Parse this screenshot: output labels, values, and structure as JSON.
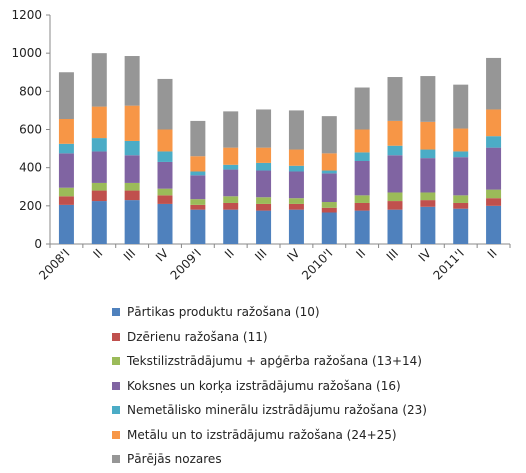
{
  "chart_data": {
    "type": "bar",
    "stacked": true,
    "categories": [
      "2008'I",
      "II",
      "III",
      "IV",
      "2009'I",
      "II",
      "III",
      "IV",
      "2010'I",
      "II",
      "III",
      "IV",
      "2011'I",
      "II"
    ],
    "ylim": [
      0,
      1200
    ],
    "yticks": [
      0,
      200,
      400,
      600,
      800,
      1000,
      1200
    ],
    "grid": false,
    "legend_position": "bottom",
    "series": [
      {
        "name": "Pārtikas produktu ražošana (10)",
        "color": "#4F81BD",
        "values": [
          205,
          225,
          230,
          210,
          180,
          180,
          175,
          180,
          165,
          175,
          180,
          195,
          185,
          200
        ]
      },
      {
        "name": "Dzērienu ražošana (11)",
        "color": "#C0504D",
        "values": [
          45,
          55,
          50,
          45,
          25,
          35,
          35,
          30,
          25,
          40,
          45,
          35,
          30,
          40
        ]
      },
      {
        "name": "Tekstilizstrādājumu + apģērba ražošana (13+14)",
        "color": "#9BBB59",
        "values": [
          45,
          40,
          40,
          35,
          30,
          35,
          35,
          30,
          30,
          40,
          45,
          40,
          40,
          45
        ]
      },
      {
        "name": "Koksnes un korķa izstrādājumu ražošana (16)",
        "color": "#8064A2",
        "values": [
          180,
          165,
          145,
          140,
          125,
          140,
          140,
          140,
          150,
          180,
          195,
          180,
          200,
          220
        ]
      },
      {
        "name": "Nemetālisko minerālu izstrādājumu ražošana (23)",
        "color": "#4BACC6",
        "values": [
          50,
          70,
          75,
          55,
          20,
          25,
          40,
          30,
          15,
          45,
          50,
          45,
          30,
          60
        ]
      },
      {
        "name": "Metālu un to izstrādājumu ražošana (24+25)",
        "color": "#F79646",
        "values": [
          130,
          165,
          185,
          115,
          80,
          90,
          80,
          85,
          90,
          120,
          130,
          145,
          120,
          140
        ]
      },
      {
        "name": "Pārējās nozares",
        "color": "#969696",
        "values": [
          245,
          280,
          260,
          265,
          185,
          190,
          200,
          205,
          195,
          220,
          230,
          240,
          230,
          270
        ]
      }
    ]
  }
}
